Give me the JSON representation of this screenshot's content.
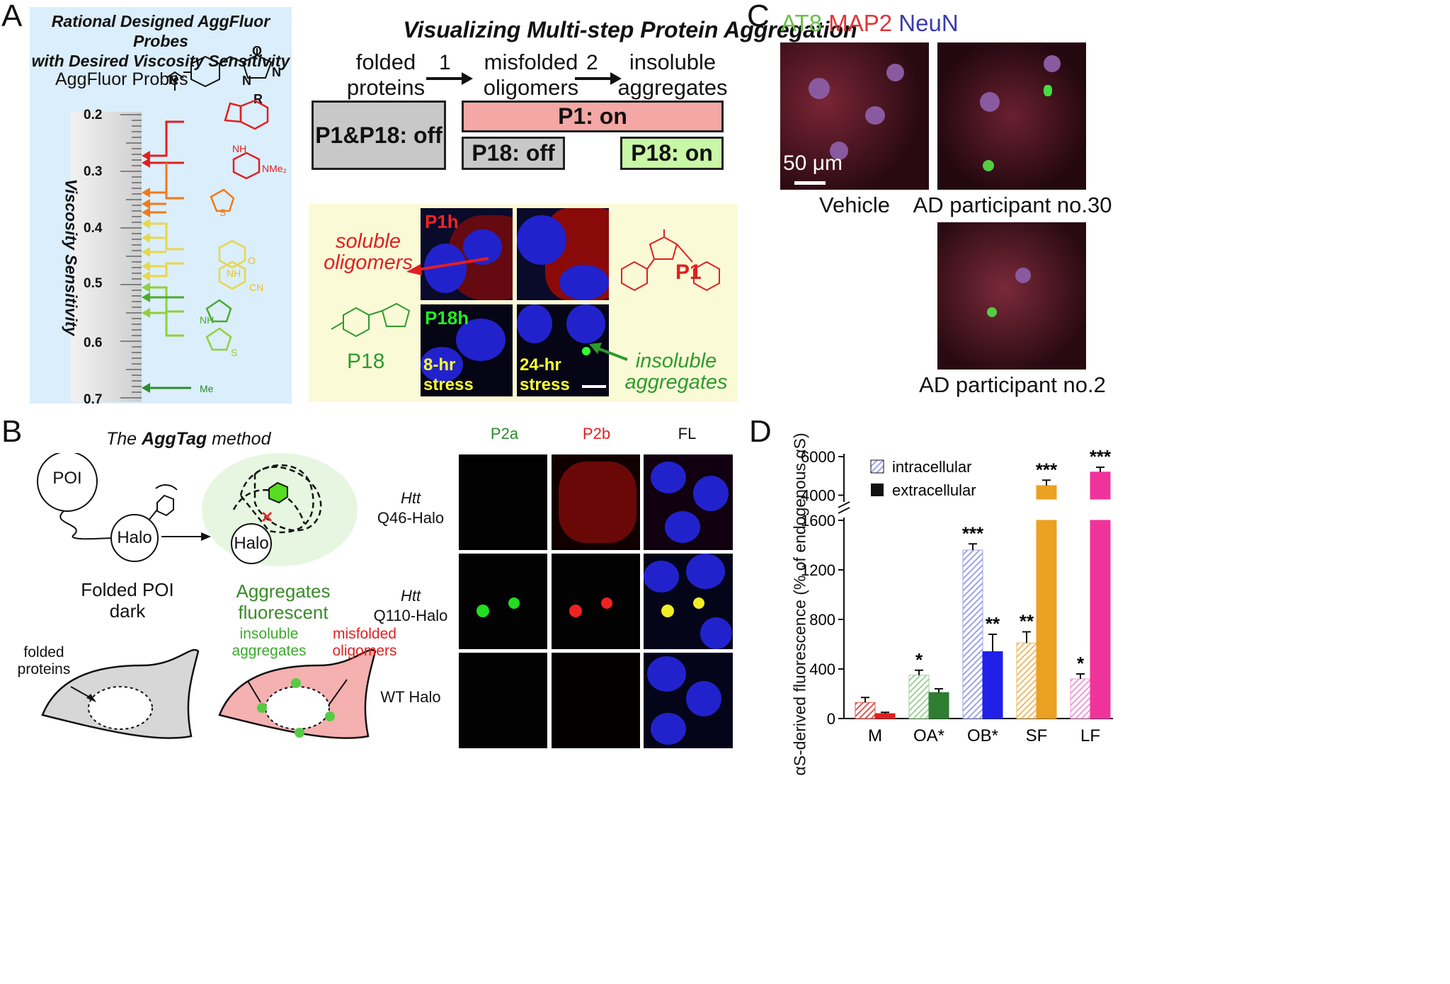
{
  "panelA": {
    "label": "A",
    "ruler_title": "Rational Designed AggFluor Probes with Desired Viscosity Sensitivity",
    "ruler_title_line1": "Rational Designed AggFluor Probes",
    "ruler_title_line2": "with Desired Viscosity Sensitivity",
    "probe_label": "AggFluor Probes",
    "axis_label": "Viscosity Sensitivity",
    "ticks": [
      "0.2",
      "0.3",
      "0.4",
      "0.5",
      "0.6",
      "0.7"
    ],
    "substituents": {
      "nme2": "NMe₂",
      "cn": "CN",
      "nh": "NH",
      "me": "Me",
      "s": "S",
      "o": "O",
      "n": "N",
      "r": "R"
    },
    "schema_title": "Visualizing Multi-step Protein Aggregation",
    "stages": [
      "folded proteins",
      "misfolded oligomers",
      "insoluble aggregates"
    ],
    "stage_lines": {
      "s1a": "folded",
      "s1b": "proteins",
      "s2a": "misfolded",
      "s2b": "oligomers",
      "s3a": "insoluble",
      "s3b": "aggregates"
    },
    "steps": [
      "1",
      "2"
    ],
    "boxes": {
      "off_both": "P1&P18: off",
      "p1_on": "P1: on",
      "p18_off": "P18: off",
      "p18_on": "P18: on"
    },
    "micro": {
      "p1h": "P1h",
      "p18h": "P18h",
      "stress8a": "8-hr",
      "stress8b": "stress",
      "stress24a": "24-hr",
      "stress24b": "stress",
      "soluble1": "soluble",
      "soluble2": "oligomers",
      "insoluble1": "insoluble",
      "insoluble2": "aggregates",
      "p1": "P1",
      "p18": "P18"
    },
    "colors": {
      "p1_box": "#f4a7a5",
      "p18_on_box": "#c8f7a6",
      "off_box": "#c8c8c8",
      "ruler_bg": "#dbeefb",
      "yellow_bg": "#fbfad7"
    }
  },
  "panelB": {
    "label": "B",
    "title_pre": "The ",
    "title_bold": "AggTag",
    "title_post": " method",
    "poi": "POI",
    "halo": "Halo",
    "folded_line1": "Folded POI",
    "folded_line2": "dark",
    "agg_line1": "Aggregates",
    "agg_line2": "fluorescent",
    "cell_folded_1": "folded",
    "cell_folded_2": "proteins",
    "cell_insol_1": "insoluble",
    "cell_insol_2": "aggregates",
    "cell_misf_1": "misfolded",
    "cell_misf_2": "oligomers",
    "col_headers": [
      "P2a",
      "P2b",
      "FL"
    ],
    "rows": [
      {
        "gene": "Htt",
        "construct": "Q46-Halo"
      },
      {
        "gene": "Htt",
        "construct": "Q110-Halo"
      },
      {
        "gene": "",
        "construct": "WT Halo"
      }
    ]
  },
  "panelC": {
    "label": "C",
    "stain_at8": "AT8",
    "stain_map2": "MAP2",
    "stain_neun": "NeuN",
    "scale": "50 μm",
    "captions": [
      "Vehicle",
      "AD participant no.30",
      "AD participant no.2"
    ]
  },
  "panelD": {
    "label": "D",
    "ylabel": "αS-derived fluorescence (% of endogenous αS)",
    "legend": [
      "intracellular",
      "extracellular"
    ],
    "chart_data": {
      "type": "bar",
      "categories": [
        "M",
        "OA*",
        "OB*",
        "SF",
        "LF"
      ],
      "series": [
        {
          "name": "intracellular",
          "values": [
            130,
            350,
            1360,
            610,
            320
          ],
          "errors": [
            40,
            40,
            50,
            90,
            40
          ],
          "sig": [
            "",
            "*",
            "***",
            "**",
            "*"
          ]
        },
        {
          "name": "extracellular",
          "values": [
            40,
            210,
            540,
            4500,
            5200
          ],
          "errors": [
            10,
            30,
            140,
            280,
            250
          ],
          "sig": [
            "",
            "",
            "**",
            "***",
            "***"
          ]
        }
      ],
      "yticks_lower": [
        0,
        400,
        800,
        1200,
        1600
      ],
      "yticks_upper": [
        4000,
        6000
      ],
      "ylim_lower": [
        0,
        1600
      ],
      "ylim_upper": [
        3800,
        6000
      ],
      "axis_break": true,
      "colors": {
        "M": [
          "#e5544f",
          "#e02020"
        ],
        "OA*": [
          "#9fd29a",
          "#2e7d32"
        ],
        "OB*": [
          "#9da2ee",
          "#2020e8"
        ],
        "SF": [
          "#f4b961",
          "#eba122"
        ],
        "LF": [
          "#f59ad6",
          "#f0339b"
        ]
      }
    }
  }
}
